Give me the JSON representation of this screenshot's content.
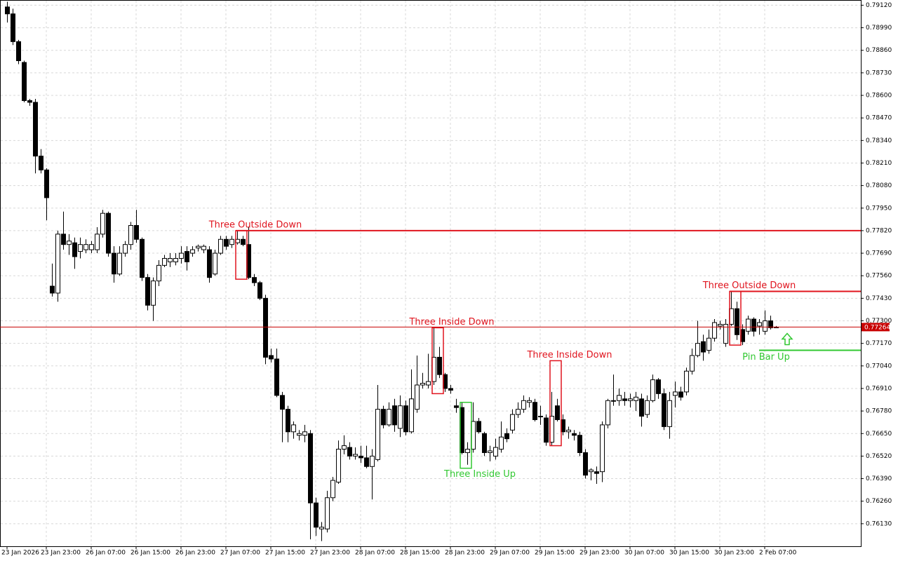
{
  "chart_data": {
    "type": "candlestick",
    "categories": [
      "23 Jan 2026",
      null,
      null,
      null,
      null,
      null,
      null,
      "23 Jan 23:00",
      null,
      null,
      null,
      null,
      null,
      null,
      null,
      "26 Jan 07:00",
      null,
      null,
      null,
      null,
      null,
      null,
      null,
      "26 Jan 15:00",
      null,
      null,
      null,
      null,
      null,
      null,
      null,
      "26 Jan 23:00",
      null,
      null,
      null,
      null,
      null,
      null,
      null,
      "27 Jan 07:00",
      null,
      null,
      null,
      null,
      null,
      null,
      null,
      "27 Jan 15:00",
      null,
      null,
      null,
      null,
      null,
      null,
      null,
      "27 Jan 23:00",
      null,
      null,
      null,
      null,
      null,
      null,
      null,
      "28 Jan 07:00",
      null,
      null,
      null,
      null,
      null,
      null,
      null,
      "28 Jan 15:00",
      null,
      null,
      null,
      null,
      null,
      null,
      null,
      "28 Jan 23:00",
      null,
      null,
      null,
      null,
      null,
      null,
      null,
      "29 Jan 07:00",
      null,
      null,
      null,
      null,
      null,
      null,
      null,
      "29 Jan 15:00",
      null,
      null,
      null,
      null,
      null,
      null,
      null,
      "29 Jan 23:00",
      null,
      null,
      null,
      null,
      null,
      null,
      null,
      "30 Jan 07:00",
      null,
      null,
      null,
      null,
      null,
      null,
      null,
      "30 Jan 15:00",
      null,
      null,
      null,
      null,
      null,
      null,
      null,
      "30 Jan 23:00",
      null,
      null,
      null,
      null,
      null,
      null,
      null,
      "2 Feb 07:00",
      null,
      null
    ],
    "open": [
      0.7911,
      0.7907,
      0.7891,
      0.7879,
      0.7857,
      0.7856,
      0.7825,
      0.7817,
      0.775,
      0.7746,
      0.778,
      0.7774,
      0.7775,
      0.777,
      0.7771,
      0.7771,
      0.7771,
      0.778,
      0.7792,
      0.7769,
      0.7757,
      0.7769,
      0.7774,
      0.7785,
      0.7777,
      0.7755,
      0.7739,
      0.7753,
      0.7762,
      0.7764,
      0.7764,
      0.7766,
      0.777,
      0.7769,
      0.7772,
      0.7771,
      0.7771,
      0.7757,
      0.7769,
      0.7777,
      0.7774,
      0.7775,
      0.7777,
      0.7774,
      0.7755,
      0.7752,
      0.7743,
      0.771,
      0.7708,
      0.7687,
      0.7679,
      0.7666,
      0.7664,
      0.7664,
      0.7665,
      0.7625,
      0.761,
      0.761,
      0.7628,
      0.7637,
      0.7656,
      0.7657,
      0.7652,
      0.7652,
      0.7651,
      0.7646,
      0.765,
      0.7679,
      0.767,
      0.7681,
      0.7668,
      0.7681,
      0.7666,
      0.7679,
      0.7693,
      0.7693,
      0.7695,
      0.7709,
      0.7699,
      0.7691,
      0.7681,
      0.768,
      0.7654,
      0.7656,
      0.7672,
      0.7665,
      0.7654,
      0.7652,
      0.7656,
      0.7665,
      0.7667,
      0.7676,
      0.7679,
      0.7683,
      0.7683,
      0.7675,
      0.7674,
      0.766,
      0.7681,
      0.7673,
      0.7666,
      0.7665,
      0.7664,
      0.7654,
      0.7643,
      0.7643,
      0.7643,
      0.767,
      0.7684,
      0.7684,
      0.7685,
      0.7684,
      0.7684,
      0.7685,
      0.7676,
      0.7684,
      0.7696,
      0.7688,
      0.7669,
      0.7687,
      0.7689,
      0.7689,
      0.7701,
      0.771,
      0.7718,
      0.7713,
      0.772,
      0.7727,
      0.7717,
      0.7728,
      0.7737,
      0.7725,
      0.7724,
      0.7731,
      0.7727,
      0.7724,
      0.773,
      0.7726
    ],
    "high": [
      0.7914,
      0.791,
      0.7892,
      0.788,
      0.7858,
      0.7858,
      0.7829,
      0.7818,
      0.7763,
      0.7782,
      0.7793,
      0.778,
      0.7778,
      0.7778,
      0.7777,
      0.7776,
      0.7784,
      0.7794,
      0.7793,
      0.7773,
      0.7773,
      0.7776,
      0.7787,
      0.7794,
      0.7778,
      0.7757,
      0.7755,
      0.7765,
      0.7768,
      0.7769,
      0.7769,
      0.7773,
      0.7773,
      0.7773,
      0.7774,
      0.7774,
      0.7773,
      0.7771,
      0.7779,
      0.7779,
      0.7779,
      0.7782,
      0.7779,
      0.7784,
      0.7757,
      0.7753,
      0.7745,
      0.7714,
      0.7714,
      0.7689,
      0.7681,
      0.7672,
      0.7667,
      0.767,
      0.7667,
      0.7628,
      0.7614,
      0.7632,
      0.764,
      0.7661,
      0.7664,
      0.766,
      0.7657,
      0.7658,
      0.7658,
      0.7656,
      0.7693,
      0.7681,
      0.7683,
      0.7685,
      0.7687,
      0.7684,
      0.7702,
      0.771,
      0.77,
      0.7711,
      0.7726,
      0.7715,
      0.77,
      0.7693,
      0.7685,
      0.7683,
      0.766,
      0.7683,
      0.7674,
      0.7666,
      0.7658,
      0.7662,
      0.7672,
      0.7668,
      0.7679,
      0.7683,
      0.7687,
      0.7686,
      0.7685,
      0.7681,
      0.7676,
      0.7689,
      0.7685,
      0.7676,
      0.7669,
      0.7667,
      0.7666,
      0.7656,
      0.7645,
      0.7646,
      0.7672,
      0.7685,
      0.7699,
      0.7691,
      0.7689,
      0.7688,
      0.7689,
      0.7688,
      0.7687,
      0.7699,
      0.7697,
      0.7691,
      0.7689,
      0.7695,
      0.7692,
      0.7703,
      0.7714,
      0.773,
      0.7722,
      0.7725,
      0.7731,
      0.773,
      0.7731,
      0.7747,
      0.7741,
      0.7728,
      0.7733,
      0.7732,
      0.7731,
      0.7736,
      0.7733,
      0.7727
    ],
    "low": [
      0.7902,
      0.7889,
      0.7878,
      0.7856,
      0.7854,
      0.7815,
      0.7815,
      0.7788,
      0.7744,
      0.7741,
      0.7771,
      0.7768,
      0.776,
      0.7766,
      0.7769,
      0.7769,
      0.7769,
      0.7778,
      0.7767,
      0.7752,
      0.7756,
      0.7767,
      0.7771,
      0.7775,
      0.7753,
      0.7736,
      0.773,
      0.775,
      0.7761,
      0.7761,
      0.7762,
      0.7763,
      0.7759,
      0.7767,
      0.777,
      0.7769,
      0.7752,
      0.7756,
      0.7768,
      0.7771,
      0.7772,
      0.7774,
      0.7773,
      0.7754,
      0.775,
      0.7742,
      0.7705,
      0.7706,
      0.7686,
      0.766,
      0.766,
      0.7662,
      0.7661,
      0.766,
      0.7604,
      0.7606,
      0.7603,
      0.7608,
      0.7626,
      0.7636,
      0.7653,
      0.765,
      0.765,
      0.7648,
      0.7645,
      0.7627,
      0.7649,
      0.7668,
      0.7669,
      0.7666,
      0.7663,
      0.7664,
      0.7665,
      0.7677,
      0.7691,
      0.7691,
      0.7693,
      0.7697,
      0.7689,
      0.7688,
      0.7677,
      0.7653,
      0.7647,
      0.7654,
      0.7665,
      0.7652,
      0.7649,
      0.765,
      0.7654,
      0.766,
      0.7665,
      0.7674,
      0.7677,
      0.768,
      0.7672,
      0.767,
      0.7658,
      0.7658,
      0.7672,
      0.7664,
      0.7662,
      0.7661,
      0.7652,
      0.7639,
      0.7638,
      0.7636,
      0.7637,
      0.7668,
      0.7681,
      0.7681,
      0.7681,
      0.768,
      0.7678,
      0.7669,
      0.7674,
      0.7683,
      0.7685,
      0.7667,
      0.7662,
      0.768,
      0.7684,
      0.7687,
      0.7699,
      0.7709,
      0.7707,
      0.7711,
      0.7718,
      0.7725,
      0.7715,
      0.7727,
      0.7719,
      0.7716,
      0.7722,
      0.7721,
      0.7722,
      0.7722,
      0.7725,
      0.7726
    ],
    "close": [
      0.7907,
      0.7891,
      0.788,
      0.7857,
      0.7856,
      0.7825,
      0.7817,
      0.7801,
      0.7746,
      0.778,
      0.7774,
      0.7776,
      0.7767,
      0.7774,
      0.7774,
      0.7774,
      0.778,
      0.7792,
      0.7769,
      0.7757,
      0.7769,
      0.7774,
      0.7785,
      0.7777,
      0.7755,
      0.7739,
      0.7753,
      0.7762,
      0.7766,
      0.7766,
      0.7766,
      0.7769,
      0.7764,
      0.7771,
      0.7773,
      0.7773,
      0.7755,
      0.7769,
      0.7777,
      0.7773,
      0.7777,
      0.7777,
      0.7774,
      0.7755,
      0.7752,
      0.7743,
      0.7709,
      0.7708,
      0.7687,
      0.7679,
      0.7666,
      0.767,
      0.7665,
      0.7666,
      0.7625,
      0.7611,
      0.7611,
      0.7628,
      0.7638,
      0.7656,
      0.7658,
      0.7652,
      0.7653,
      0.7651,
      0.7646,
      0.7652,
      0.7679,
      0.767,
      0.7679,
      0.767,
      0.7681,
      0.7666,
      0.7685,
      0.7693,
      0.7694,
      0.7695,
      0.7709,
      0.7699,
      0.7691,
      0.769,
      0.768,
      0.7654,
      0.7656,
      0.7672,
      0.7666,
      0.7654,
      0.7655,
      0.7657,
      0.7663,
      0.7662,
      0.7676,
      0.7679,
      0.7684,
      0.7684,
      0.7673,
      0.7675,
      0.766,
      0.7675,
      0.7673,
      0.7666,
      0.7667,
      0.7664,
      0.7654,
      0.7641,
      0.7644,
      0.7642,
      0.767,
      0.7684,
      0.7684,
      0.7687,
      0.7684,
      0.7685,
      0.7686,
      0.7675,
      0.7684,
      0.7696,
      0.7688,
      0.7669,
      0.7684,
      0.7689,
      0.7686,
      0.7701,
      0.771,
      0.7717,
      0.7712,
      0.772,
      0.7729,
      0.7728,
      0.7728,
      0.7737,
      0.7722,
      0.7718,
      0.7731,
      0.7724,
      0.7729,
      0.773,
      0.7726,
      0.77264
    ],
    "ylim": [
      0.76,
      0.7915
    ],
    "yticks": [
      {
        "value": 0.7912,
        "label": "0.79120"
      },
      {
        "value": 0.7899,
        "label": "0.78990"
      },
      {
        "value": 0.7886,
        "label": "0.78860"
      },
      {
        "value": 0.7873,
        "label": "0.78730"
      },
      {
        "value": 0.786,
        "label": "0.78600"
      },
      {
        "value": 0.7847,
        "label": "0.78470"
      },
      {
        "value": 0.7834,
        "label": "0.78340"
      },
      {
        "value": 0.7821,
        "label": "0.78210"
      },
      {
        "value": 0.7808,
        "label": "0.78080"
      },
      {
        "value": 0.7795,
        "label": "0.77950"
      },
      {
        "value": 0.7782,
        "label": "0.77820"
      },
      {
        "value": 0.7769,
        "label": "0.77690"
      },
      {
        "value": 0.7756,
        "label": "0.77560"
      },
      {
        "value": 0.7743,
        "label": "0.77430"
      },
      {
        "value": 0.773,
        "label": "0.77300"
      },
      {
        "value": 0.7717,
        "label": "0.77170"
      },
      {
        "value": 0.7704,
        "label": "0.77040"
      },
      {
        "value": 0.7691,
        "label": "0.76910"
      },
      {
        "value": 0.7678,
        "label": "0.76780"
      },
      {
        "value": 0.7665,
        "label": "0.76650"
      },
      {
        "value": 0.7652,
        "label": "0.76520"
      },
      {
        "value": 0.7639,
        "label": "0.76390"
      },
      {
        "value": 0.7626,
        "label": "0.76260"
      },
      {
        "value": 0.7613,
        "label": "0.76130"
      }
    ],
    "grid": true,
    "up_color": "#ffffff",
    "down_color": "#000000",
    "wick_color": "#000000",
    "last_price": 0.77264,
    "last_price_color": "#c80000",
    "bear_pattern_color": "#e0141e",
    "bull_pattern_color": "#32c832",
    "patterns": [
      {
        "label": "Three Outside Down",
        "from": 41,
        "to": 42,
        "high": 0.7782,
        "low": 0.7754,
        "level": 0.7782
      },
      {
        "label": "Three Inside Down",
        "from": 76,
        "to": 77,
        "high": 0.7726,
        "low": 0.7688
      },
      {
        "label": "Three Inside Up",
        "from": 81,
        "to": 82,
        "high": 0.7683,
        "low": 0.7645
      },
      {
        "label": "Three Inside Down",
        "from": 97,
        "to": 98,
        "high": 0.7707,
        "low": 0.7658
      },
      {
        "label": "Three Outside Down",
        "from": 129,
        "to": 130,
        "high": 0.7747,
        "low": 0.7716,
        "level": 0.7747
      }
    ],
    "pin_bar": {
      "label": "Pin Bar Up",
      "from": 134,
      "level": 0.7713
    }
  }
}
